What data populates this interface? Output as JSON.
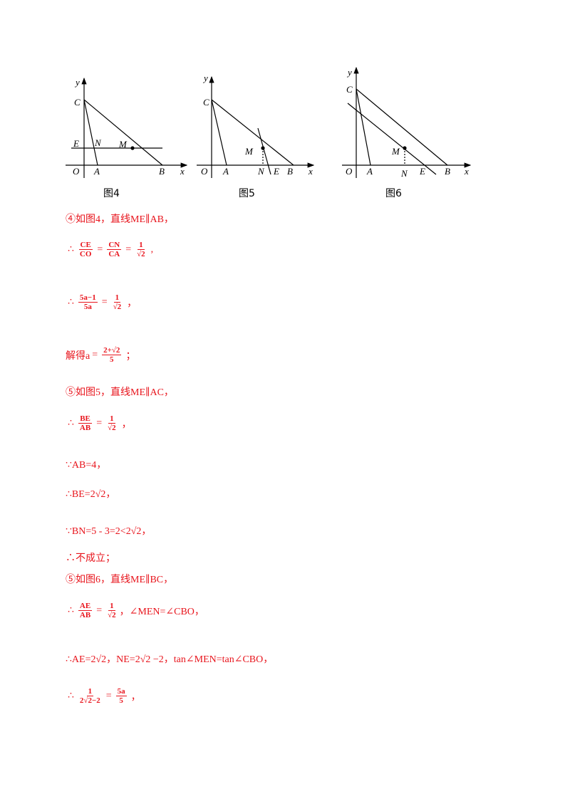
{
  "figures": [
    {
      "caption": "图4",
      "labels": [
        "y",
        "C",
        "E",
        "N",
        "M",
        "O",
        "A",
        "B",
        "x"
      ]
    },
    {
      "caption": "图5",
      "labels": [
        "y",
        "C",
        "M",
        "O",
        "A",
        "N",
        "E",
        "B",
        "x"
      ]
    },
    {
      "caption": "图6",
      "labels": [
        "y",
        "C",
        "M",
        "O",
        "A",
        "N",
        "E",
        "B",
        "x"
      ]
    }
  ],
  "lines": [
    [
      "④如图4，直线ME∥AB，"
    ],
    [
      "∴",
      {
        "num": "CE",
        "den": "CO"
      },
      "=",
      {
        "num": "CN",
        "den": "CA"
      },
      "=",
      {
        "num": "1",
        "den": "√2"
      },
      ","
    ],
    [
      "∴",
      {
        "num": "5a−1",
        "den": "5a"
      },
      "=",
      {
        "num": "1",
        "den": "√2"
      },
      "，"
    ],
    [
      "解得a",
      "=",
      {
        "num": "2+√2",
        "den": "5"
      },
      "；"
    ],
    [
      "⑤如图5，直线ME∥AC，"
    ],
    [
      "∴",
      {
        "num": "BE",
        "den": "AB"
      },
      "=",
      {
        "num": "1",
        "den": "√2"
      },
      "，"
    ],
    [
      "∵AB=4，"
    ],
    [
      "∴BE=2√2，"
    ],
    [
      "∵BN=5 - 3=2<2√2，"
    ],
    [
      "∴不成立；"
    ],
    [
      "⑤如图6，直线ME∥BC，"
    ],
    [
      "∴",
      {
        "num": "AE",
        "den": "AB"
      },
      "=",
      {
        "num": "1",
        "den": "√2"
      },
      "，∠MEN=∠CBO，"
    ],
    [
      "∴AE=2√2，NE=2√2 −2，tan∠MEN=tan∠CBO，"
    ],
    [
      "∴",
      {
        "num": "1",
        "den": "2√2−2"
      },
      "=",
      {
        "num": "5a",
        "den": "5"
      },
      "，"
    ]
  ]
}
